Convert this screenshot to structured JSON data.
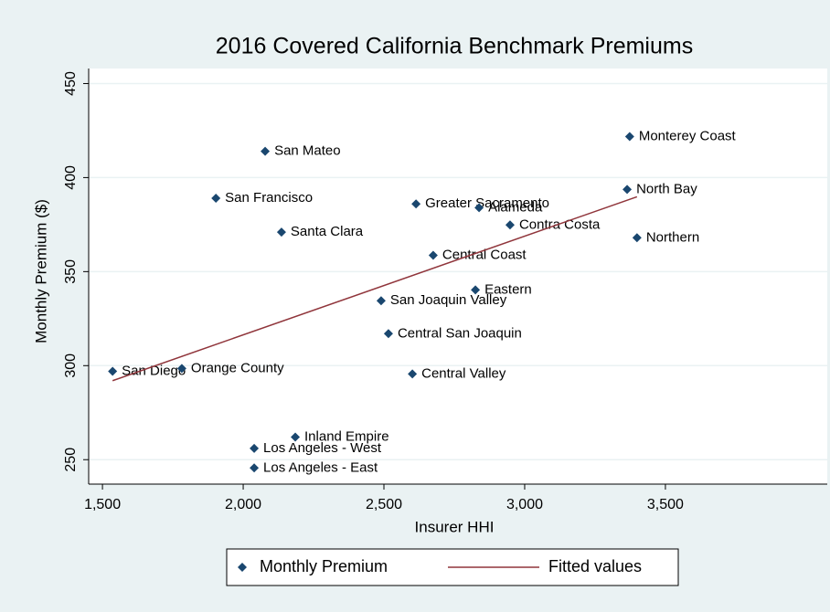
{
  "chart_data": {
    "type": "scatter",
    "title": "2016 Covered California Benchmark Premiums",
    "xlabel": "Insurer HHI",
    "ylabel": "Monthly Premium ($)",
    "xlim": [
      1451,
      4075
    ],
    "ylim": [
      237,
      458
    ],
    "xticks": [
      {
        "value": 1500,
        "label": "1,500"
      },
      {
        "value": 2000,
        "label": "2,000"
      },
      {
        "value": 2500,
        "label": "2,500"
      },
      {
        "value": 3000,
        "label": "3,000"
      },
      {
        "value": 3500,
        "label": "3,500"
      }
    ],
    "yticks": [
      250,
      300,
      350,
      400,
      450
    ],
    "grid": true,
    "legend": "bottom",
    "series": [
      {
        "name": "Monthly Premium",
        "color": "#1a476f",
        "type": "scatter",
        "labels": [
          "San Diego",
          "Orange County",
          "San Francisco",
          "San Mateo",
          "Santa Clara",
          "Inland Empire",
          "Los Angeles - West",
          "Los Angeles - East",
          "San Joaquin Valley",
          "Central San Joaquin",
          "Central Valley",
          "Greater Sacramento",
          "Central Coast",
          "Alameda",
          "Eastern",
          "Contra Costa",
          "Monterey Coast",
          "North Bay",
          "Northern"
        ],
        "x": [
          1536,
          1782,
          1903,
          2078,
          2136,
          2185,
          2039,
          2039,
          2490,
          2516,
          2601,
          2614,
          2675,
          2838,
          2825,
          2948,
          3373,
          3364,
          3399
        ],
        "values": [
          297,
          298.5,
          389,
          414,
          371,
          262,
          256,
          245.6,
          334.5,
          317,
          295.6,
          386,
          358.7,
          384,
          340.3,
          374.8,
          421.8,
          393.7,
          368
        ]
      },
      {
        "name": "Fitted values",
        "color": "#90353b",
        "type": "line",
        "x": [
          1536,
          3399
        ],
        "values": [
          292,
          389.8
        ]
      }
    ]
  }
}
